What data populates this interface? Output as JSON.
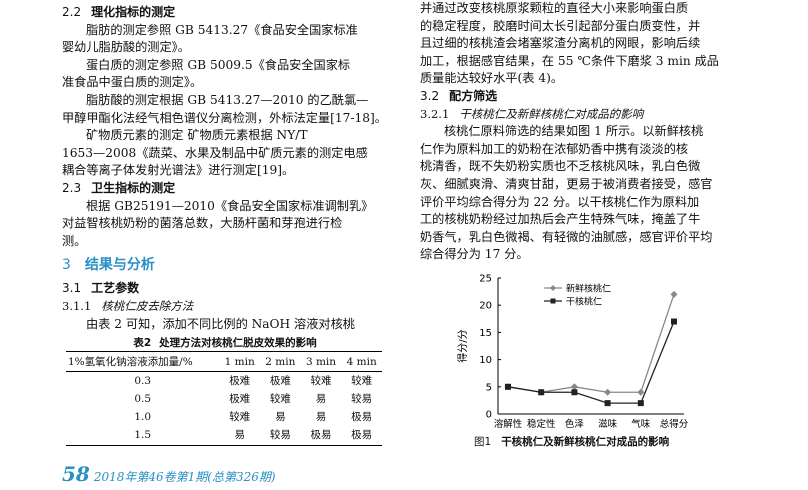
{
  "left": {
    "sec22_num": "2.2",
    "sec22_title": "理化指标的测定",
    "p1_l1": "脂肪的测定参照 GB 5413.27《食品安全国家标准",
    "p1_l2": "婴幼儿脂肪酸的测定》。",
    "p2_l1": "蛋白质的测定参照 GB 5009.5《食品安全国家标",
    "p2_l2": "准食品中蛋白质的测定》。",
    "p3_l1": "脂肪酸的测定根据 GB 5413.27—2010 的乙酰氯—",
    "p3_l2": "甲醇甲酯化法经气相色谱仪分离检测，外标法定量[17-18]。",
    "p4_l1": "矿物质元素的测定  矿物质元素根据 NY/T",
    "p4_l2": "1653—2008《蔬菜、水果及制品中矿质元素的测定电感",
    "p4_l3": "耦合等离子体发射光谱法》进行测定[19]。",
    "sec23_num": "2.3",
    "sec23_title": "卫生指标的测定",
    "p5_l1": "根据 GB25191—2010《食品安全国家标准调制乳》",
    "p5_l2": "对益智核桃奶粉的菌落总数，大肠杆菌和芽孢进行检",
    "p5_l3": "测。",
    "sec3_num": "3",
    "sec3_title": "结果与分析",
    "sec31_num": "3.1",
    "sec31_title": "工艺参数",
    "sec311_num": "3.1.1",
    "sec311_title": "核桃仁皮去除方法",
    "p6_l1": "由表 2 可知，添加不同比例的 NaOH 溶液对核桃",
    "table_label": "表2",
    "table_title": "处理方法对核桃仁脱皮效果的影响",
    "table_headers": [
      "1%氢氧化钠溶液添加量/%",
      "1 min",
      "2 min",
      "3 min",
      "4 min"
    ],
    "table_rows": [
      [
        "0.3",
        "极难",
        "极难",
        "较难",
        "较难"
      ],
      [
        "0.5",
        "极难",
        "较难",
        "易",
        "较易"
      ],
      [
        "1.0",
        "较难",
        "易",
        "易",
        "极易"
      ],
      [
        "1.5",
        "易",
        "较易",
        "极易",
        "极易"
      ]
    ]
  },
  "right": {
    "p1_l1": "并通过改变核桃原浆颗粒的直径大小来影响蛋白质",
    "p1_l2": "的稳定程度，胶磨时间太长引起部分蛋白质变性，并",
    "p1_l3": "且过细的核桃渣会堵塞浆渣分离机的网眼，影响后续",
    "p1_l4": "加工，根据感官结果，在 55 ℃条件下磨浆 3 min 成品",
    "p1_l5": "质量能达较好水平(表 4)。",
    "sec32_num": "3.2",
    "sec32_title": "配方筛选",
    "sec321_num": "3.2.1",
    "sec321_title": "干核桃仁及新鲜核桃仁对成品的影响",
    "p2_l1": "核桃仁原料筛选的结果如图 1 所示。以新鲜核桃",
    "p2_l2": "仁作为原料加工的奶粉在浓郁奶香中携有淡淡的核",
    "p2_l3": "桃清香，既不失奶粉实质也不乏核桃风味，乳白色微",
    "p2_l4": "灰、细腻爽滑、清爽甘甜，更易于被消费者接受，感官",
    "p2_l5": "评价平均综合得分为 22 分。以干核桃仁作为原料加",
    "p2_l6": "工的核桃奶粉经过加热后会产生特殊气味，掩盖了牛",
    "p2_l7": "奶香气，乳白色微褐、有轻微的油腻感，感官评价平均",
    "p2_l8": "综合得分为 17 分。",
    "fig_num": "图1",
    "fig_title": "干核桃仁及新鲜核桃仁对成品的影响"
  },
  "footer": {
    "page": "58",
    "text": "2018年第46卷第1期(总第326期)"
  },
  "chart_data": {
    "type": "line",
    "categories": [
      "溶解性",
      "稳定性",
      "色泽",
      "滋味",
      "气味",
      "总得分"
    ],
    "series": [
      {
        "name": "新鲜核桃仁",
        "marker": "diamond",
        "values": [
          5,
          4,
          5,
          4,
          4,
          22
        ]
      },
      {
        "name": "干核桃仁",
        "marker": "square",
        "values": [
          5,
          4,
          4,
          2,
          2,
          17
        ]
      }
    ],
    "ylabel": "得分/分",
    "yticks": [
      0,
      5,
      10,
      15,
      20,
      25
    ],
    "ylim": [
      0,
      25
    ],
    "legend": "top-left",
    "grid": false
  }
}
